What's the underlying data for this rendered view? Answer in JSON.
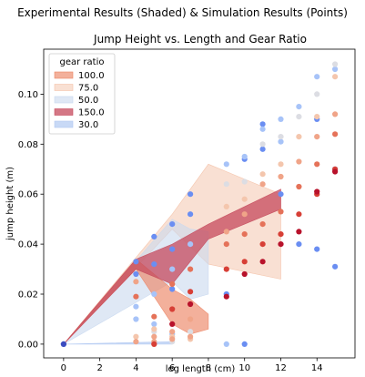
{
  "suptitle": "Experimental Results (Shaded) & Simulation Results (Points)",
  "chart_data": {
    "type": "scatter",
    "title": "Jump Height vs. Length and Gear Ratio",
    "xlabel": "leg length (cm)",
    "ylabel": "jump height (m)",
    "xlim": [
      -1.1,
      16.1
    ],
    "ylim": [
      -0.0055,
      0.118
    ],
    "xticks": [
      0,
      2,
      4,
      6,
      8,
      10,
      12,
      14
    ],
    "yticks": [
      0.0,
      0.02,
      0.04,
      0.06,
      0.08,
      0.1
    ],
    "ytick_labels": [
      "0.00",
      "0.02",
      "0.04",
      "0.06",
      "0.08",
      "0.10"
    ],
    "grid": false,
    "legend": {
      "title": "gear ratio",
      "placement": "top-left",
      "entries": [
        "100.0",
        "75.0",
        "50.0",
        "150.0",
        "30.0"
      ]
    },
    "bands": [
      {
        "name": "75.0",
        "color": "#f4c2a8",
        "opacity": 0.5,
        "x": [
          0,
          6,
          8,
          12
        ],
        "lower": [
          0,
          0.046,
          0.032,
          0.026
        ],
        "upper": [
          0,
          0.052,
          0.072,
          0.06
        ]
      },
      {
        "name": "50.0",
        "color": "#c9d8ef",
        "opacity": 0.6,
        "x": [
          0,
          6,
          7,
          8
        ],
        "lower": [
          0,
          0.025,
          0.018,
          0.02
        ],
        "upper": [
          0,
          0.05,
          0.046,
          0.045
        ]
      },
      {
        "name": "100.0",
        "color": "#ec8565",
        "opacity": 0.65,
        "x": [
          0,
          4,
          6,
          7,
          8
        ],
        "lower": [
          0.0,
          0.03,
          0.008,
          0.004,
          0.006
        ],
        "upper": [
          0.0,
          0.034,
          0.022,
          0.018,
          0.012
        ]
      },
      {
        "name": "150.0",
        "color": "#c54a5c",
        "opacity": 0.75,
        "x": [
          0,
          4,
          6,
          8,
          12
        ],
        "lower": [
          0,
          0.03,
          0.024,
          0.042,
          0.054
        ],
        "upper": [
          0,
          0.034,
          0.04,
          0.048,
          0.062
        ]
      },
      {
        "name": "30.0",
        "color": "#b1c9f2",
        "opacity": 0.7,
        "x": [
          0,
          6
        ],
        "lower": [
          0,
          0.0
        ],
        "upper": [
          0,
          0.001
        ]
      }
    ],
    "series": [
      {
        "color": "#6a8ef2",
        "x": [
          0,
          4,
          4,
          5,
          5,
          6,
          6,
          6,
          7,
          7,
          9,
          10,
          10,
          11,
          11,
          12,
          13,
          14,
          14,
          15,
          15
        ],
        "y": [
          0.0,
          0.033,
          0.028,
          0.043,
          0.032,
          0.048,
          0.038,
          0.022,
          0.06,
          0.052,
          0.02,
          0.0,
          0.074,
          0.078,
          0.088,
          0.06,
          0.04,
          0.038,
          0.09,
          0.07,
          0.031
        ]
      },
      {
        "color": "#a7c3f8",
        "x": [
          4,
          4,
          5,
          5,
          6,
          6,
          7,
          9,
          9,
          10,
          11,
          12,
          12,
          13,
          14,
          15
        ],
        "y": [
          0.015,
          0.01,
          0.02,
          0.008,
          0.03,
          0.004,
          0.04,
          0.0,
          0.072,
          0.075,
          0.086,
          0.09,
          0.081,
          0.095,
          0.107,
          0.11
        ]
      },
      {
        "color": "#dcdde3",
        "x": [
          5,
          6,
          7,
          9,
          10,
          11,
          12,
          13,
          14,
          15
        ],
        "y": [
          0.005,
          0.001,
          0.005,
          0.064,
          0.065,
          0.08,
          0.083,
          0.091,
          0.1,
          0.112
        ]
      },
      {
        "color": "#f4c6ad",
        "x": [
          4,
          5,
          5,
          6,
          7,
          9,
          10,
          11,
          12,
          13,
          14,
          15
        ],
        "y": [
          0.003,
          0.006,
          0.0,
          0.003,
          0.002,
          0.055,
          0.058,
          0.068,
          0.072,
          0.083,
          0.091,
          0.107
        ]
      },
      {
        "color": "#f0a488",
        "x": [
          4,
          4,
          5,
          5,
          6,
          6,
          7,
          7,
          9,
          10,
          11,
          12,
          13,
          14,
          15
        ],
        "y": [
          0.025,
          0.001,
          0.003,
          0.001,
          0.005,
          0.002,
          0.01,
          0.003,
          0.045,
          0.052,
          0.064,
          0.067,
          0.073,
          0.083,
          0.092
        ]
      },
      {
        "color": "#e57259",
        "x": [
          4,
          5,
          6,
          7,
          9,
          10,
          11,
          12,
          13,
          14,
          15
        ],
        "y": [
          0.019,
          0.011,
          0.024,
          0.03,
          0.04,
          0.044,
          0.048,
          0.053,
          0.063,
          0.072,
          0.084
        ]
      },
      {
        "color": "#d73f36",
        "x": [
          5,
          6,
          7,
          9,
          10,
          11,
          12,
          13,
          14,
          15
        ],
        "y": [
          0.0,
          0.014,
          0.021,
          0.03,
          0.033,
          0.04,
          0.044,
          0.052,
          0.06,
          0.07
        ]
      },
      {
        "color": "#b8122b",
        "x": [
          6,
          7,
          9,
          10,
          11,
          12,
          13,
          14,
          15
        ],
        "y": [
          0.008,
          0.016,
          0.019,
          0.028,
          0.033,
          0.04,
          0.045,
          0.061,
          0.069
        ]
      },
      {
        "color": "#3b4cc0",
        "x": [
          0
        ],
        "y": [
          0.0
        ]
      }
    ]
  }
}
